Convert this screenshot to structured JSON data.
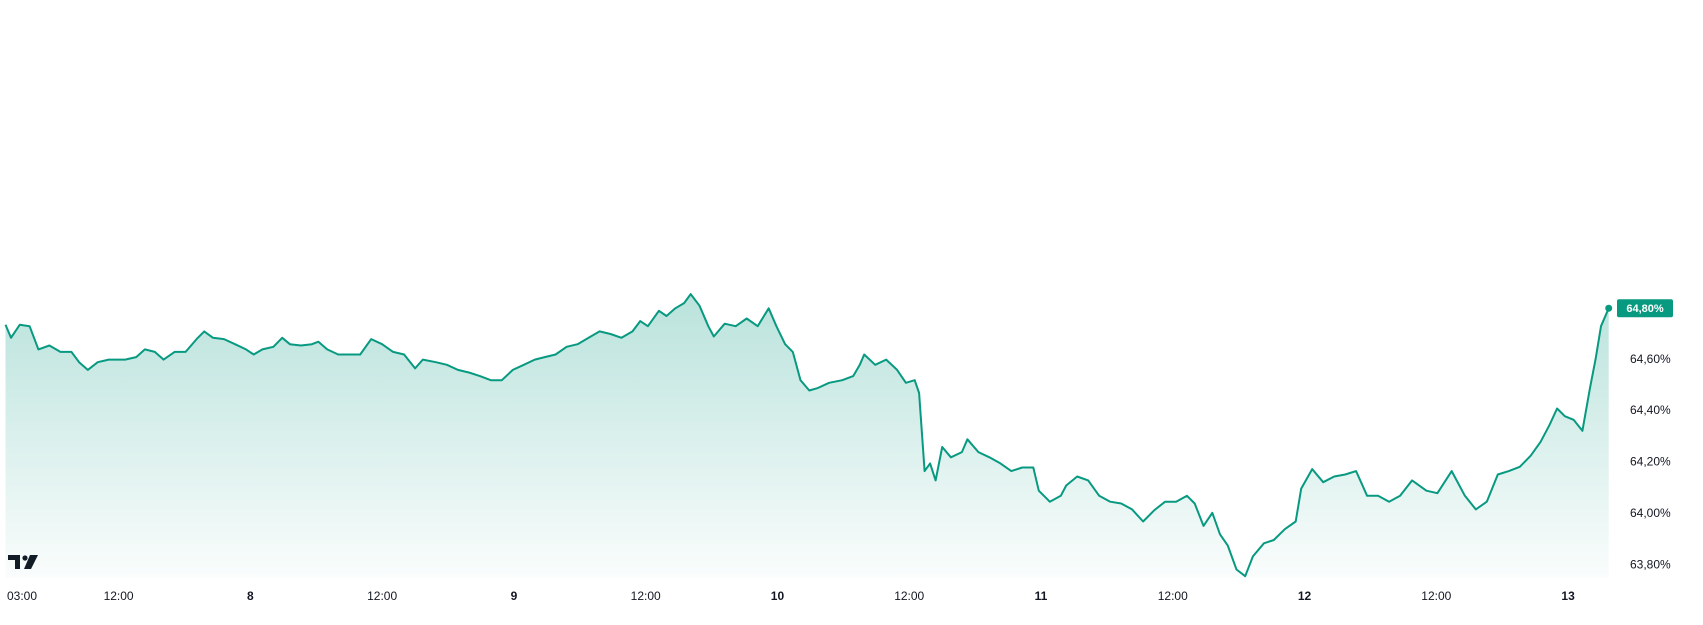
{
  "chart_data": {
    "type": "area",
    "color": "#089981",
    "xlim": [
      1.2,
      148
    ],
    "ylim": [
      63.75,
      66.0
    ],
    "xticks": [
      {
        "value": 3,
        "label": "03:00"
      },
      {
        "value": 12,
        "label": "12:00"
      },
      {
        "value": 24,
        "label": "8"
      },
      {
        "value": 36,
        "label": "12:00"
      },
      {
        "value": 48,
        "label": "9"
      },
      {
        "value": 60,
        "label": "12:00"
      },
      {
        "value": 72,
        "label": "10"
      },
      {
        "value": 84,
        "label": "12:00"
      },
      {
        "value": 96,
        "label": "11"
      },
      {
        "value": 108,
        "label": "12:00"
      },
      {
        "value": 120,
        "label": "12"
      },
      {
        "value": 132,
        "label": "12:00"
      },
      {
        "value": 144,
        "label": "13"
      }
    ],
    "yticks": [
      {
        "value": 63.8,
        "label": "63,80%"
      },
      {
        "value": 64.0,
        "label": "64,00%"
      },
      {
        "value": 64.2,
        "label": "64,20%"
      },
      {
        "value": 64.4,
        "label": "64,40%"
      },
      {
        "value": 64.6,
        "label": "64,60%"
      }
    ],
    "last_value_label": "64,80%",
    "x": [
      1.7,
      2.2,
      3,
      3.9,
      4.7,
      5.7,
      6.7,
      7.7,
      8.4,
      9.2,
      10.1,
      11.1,
      12.6,
      13.6,
      14.4,
      15.3,
      16.1,
      17.1,
      18.1,
      19.1,
      19.8,
      20.6,
      21.6,
      22.6,
      23.6,
      24.3,
      25.1,
      26.1,
      26.9,
      27.6,
      28.6,
      29.6,
      30.2,
      31,
      32,
      33,
      34,
      35,
      36,
      37,
      38,
      39,
      39.7,
      40.9,
      41.9,
      42.9,
      43.9,
      44.9,
      45.9,
      46.9,
      47.9,
      48.9,
      49.9,
      50.8,
      51.8,
      52.8,
      53.8,
      54.8,
      55.8,
      56.8,
      57.8,
      58.8,
      59.5,
      60.2,
      61.2,
      61.9,
      62.7,
      63.5,
      64.1,
      64.9,
      65.7,
      66.2,
      67.2,
      68.2,
      69.2,
      70.2,
      71.2,
      71.9,
      72.7,
      73.4,
      74.1,
      74.9,
      75.7,
      76.7,
      77.9,
      78.9,
      79.5,
      79.9,
      80.9,
      81.9,
      82.9,
      83.7,
      84.5,
      84.9,
      85.4,
      85.9,
      86.4,
      87,
      87.8,
      88.8,
      89.3,
      90.3,
      91.3,
      92.3,
      93.3,
      94.3,
      95.3,
      95.8,
      96.8,
      97.8,
      98.3,
      99.3,
      100.3,
      101.3,
      102.3,
      103.3,
      104.3,
      105.3,
      106.3,
      107.3,
      108.3,
      109.3,
      110,
      110.8,
      111.6,
      112.3,
      113,
      113.8,
      114.6,
      115.3,
      116.3,
      117.2,
      118.2,
      119.2,
      119.7,
      120.7,
      121.7,
      122.7,
      123.7,
      124.7,
      125.7,
      126.7,
      127.7,
      128.7,
      129.8,
      131.1,
      132.1,
      133.4,
      134.6,
      135.6,
      136.6,
      137.6,
      138.6,
      139.6,
      140.6,
      141.5,
      142.3,
      143,
      143.7,
      144.5,
      145.3,
      146,
      146.5,
      147,
      147.7
    ],
    "values": [
      64.736,
      64.685,
      64.736,
      64.73,
      64.64,
      64.655,
      64.63,
      64.63,
      64.59,
      64.56,
      64.59,
      64.6,
      64.6,
      64.61,
      64.64,
      64.63,
      64.6,
      64.63,
      64.63,
      64.68,
      64.71,
      64.685,
      64.68,
      64.66,
      64.64,
      64.62,
      64.64,
      64.65,
      64.685,
      64.66,
      64.655,
      64.66,
      64.67,
      64.64,
      64.62,
      64.62,
      64.62,
      64.68,
      64.66,
      64.63,
      64.62,
      64.566,
      64.6,
      64.59,
      64.58,
      64.56,
      64.55,
      64.536,
      64.52,
      64.52,
      64.56,
      64.58,
      64.6,
      64.61,
      64.62,
      64.65,
      64.66,
      64.685,
      64.71,
      64.7,
      64.685,
      64.71,
      64.75,
      64.73,
      64.79,
      64.77,
      64.8,
      64.82,
      64.855,
      64.81,
      64.73,
      64.69,
      64.74,
      64.73,
      64.76,
      64.73,
      64.8,
      64.73,
      64.66,
      64.63,
      64.52,
      64.48,
      64.49,
      64.51,
      64.52,
      64.536,
      64.58,
      64.62,
      64.58,
      64.6,
      64.56,
      64.51,
      64.52,
      64.47,
      64.166,
      64.196,
      64.13,
      64.26,
      64.22,
      64.24,
      64.29,
      64.24,
      64.22,
      64.196,
      64.166,
      64.18,
      64.18,
      64.09,
      64.047,
      64.07,
      64.11,
      64.145,
      64.13,
      64.07,
      64.047,
      64.04,
      64.017,
      63.97,
      64.013,
      64.047,
      64.047,
      64.07,
      64.04,
      63.953,
      64.004,
      63.92,
      63.877,
      63.783,
      63.757,
      63.834,
      63.885,
      63.898,
      63.94,
      63.97,
      64.098,
      64.174,
      64.123,
      64.145,
      64.153,
      64.166,
      64.07,
      64.07,
      64.047,
      64.07,
      64.13,
      64.09,
      64.08,
      64.166,
      64.07,
      64.017,
      64.047,
      64.153,
      64.166,
      64.183,
      64.226,
      64.28,
      64.345,
      64.41,
      64.38,
      64.366,
      64.323,
      64.49,
      64.6,
      64.73,
      64.8
    ]
  }
}
